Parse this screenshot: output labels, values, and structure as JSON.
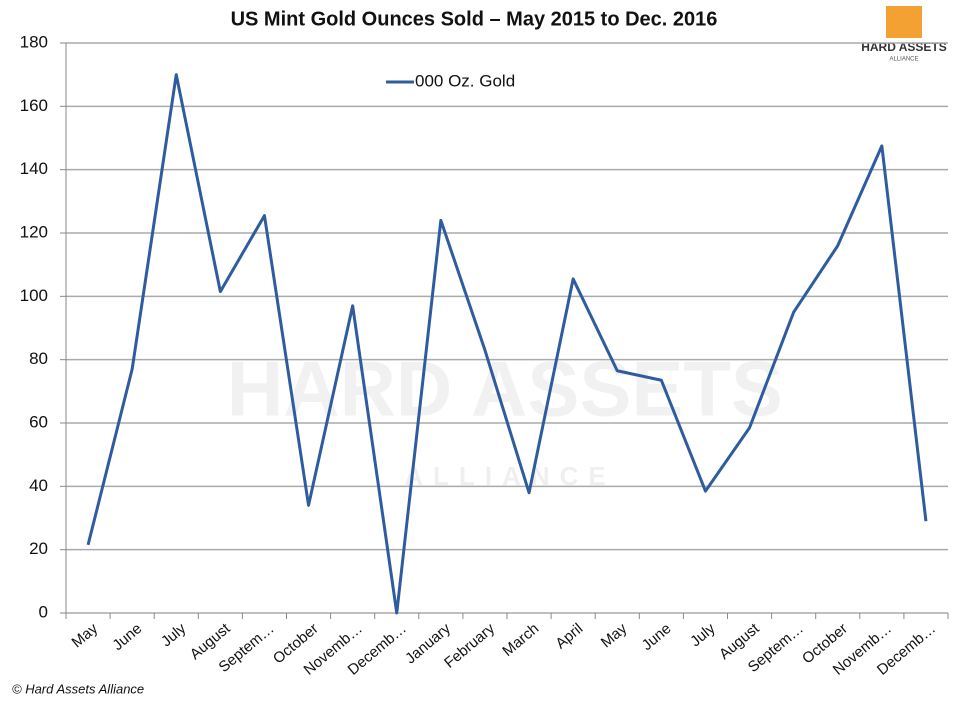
{
  "chart_data": {
    "type": "line",
    "title": "US Mint Gold Ounces Sold – May 2015 to Dec. 2016",
    "categories": [
      "May",
      "June",
      "July",
      "August",
      "Septem…",
      "October",
      "Novemb…",
      "Decemb…",
      "January",
      "February",
      "March",
      "April",
      "May",
      "June",
      "July",
      "August",
      "Septem…",
      "October",
      "Novemb…",
      "Decemb…"
    ],
    "series": [
      {
        "name": "000 Oz. Gold",
        "color": "#2e5c9e",
        "values": [
          21.5,
          77,
          170,
          101.5,
          125.5,
          34,
          97,
          0,
          124,
          83,
          38,
          105.5,
          76.5,
          73.5,
          38.5,
          58.5,
          95,
          116,
          147.5,
          29
        ]
      }
    ],
    "ylim": [
      0,
      180
    ],
    "yticks": [
      0,
      20,
      40,
      60,
      80,
      100,
      120,
      140,
      160,
      180
    ],
    "grid": true,
    "legend": "top"
  },
  "logo": {
    "name": "HARD ASSETS",
    "sub": "ALLIANCE"
  },
  "footer": "© Hard Assets Alliance"
}
